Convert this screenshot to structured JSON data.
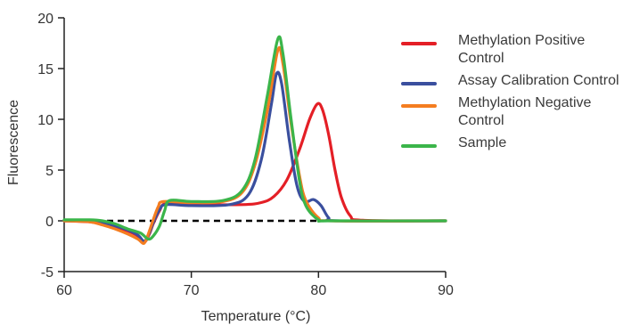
{
  "title": "...",
  "chart_data": {
    "type": "line",
    "title": "",
    "xlabel": "Temperature (°C)",
    "ylabel": "Fluorescence",
    "xlim": [
      60,
      90
    ],
    "ylim": [
      -5,
      20
    ],
    "x_ticks": [
      60,
      70,
      80,
      90
    ],
    "y_ticks": [
      -5,
      0,
      5,
      10,
      15,
      20
    ],
    "grid": false,
    "legend_position": "right",
    "baseline": {
      "y": 0,
      "style": "dashed",
      "color": "#000000"
    },
    "series": [
      {
        "name": "Methylation Positive Control",
        "color": "#e41f26",
        "points": [
          [
            60,
            0
          ],
          [
            62,
            -0.1
          ],
          [
            63,
            -0.3
          ],
          [
            64,
            -0.6
          ],
          [
            65,
            -1.0
          ],
          [
            65.8,
            -1.5
          ],
          [
            66.3,
            -2.1
          ],
          [
            66.7,
            -1.3
          ],
          [
            67,
            -0.3
          ],
          [
            67.5,
            1.0
          ],
          [
            68,
            1.7
          ],
          [
            70,
            1.6
          ],
          [
            74,
            1.6
          ],
          [
            75.5,
            1.8
          ],
          [
            76.5,
            2.4
          ],
          [
            77.5,
            4.0
          ],
          [
            78.5,
            7.0
          ],
          [
            79.3,
            10.0
          ],
          [
            79.9,
            11.5
          ],
          [
            80.3,
            11.0
          ],
          [
            80.8,
            8.5
          ],
          [
            81.3,
            5.0
          ],
          [
            81.8,
            2.3
          ],
          [
            82.5,
            0.5
          ],
          [
            83.5,
            0.05
          ],
          [
            90,
            0
          ]
        ]
      },
      {
        "name": "Assay Calibration Control",
        "color": "#3a4f9e",
        "points": [
          [
            60,
            0
          ],
          [
            62,
            0
          ],
          [
            63,
            -0.2
          ],
          [
            64,
            -0.5
          ],
          [
            65,
            -0.9
          ],
          [
            65.8,
            -1.4
          ],
          [
            66.3,
            -2.0
          ],
          [
            66.7,
            -1.2
          ],
          [
            67,
            -0.2
          ],
          [
            67.5,
            1.1
          ],
          [
            68,
            1.6
          ],
          [
            70,
            1.5
          ],
          [
            73,
            1.6
          ],
          [
            74.5,
            2.6
          ],
          [
            75.5,
            6.0
          ],
          [
            76.3,
            11.5
          ],
          [
            76.7,
            14.5
          ],
          [
            77.1,
            13.5
          ],
          [
            77.7,
            8.0
          ],
          [
            78.3,
            3.5
          ],
          [
            78.9,
            1.9
          ],
          [
            79.6,
            2.1
          ],
          [
            80.2,
            1.5
          ],
          [
            80.8,
            0.3
          ],
          [
            81.5,
            0
          ],
          [
            90,
            0
          ]
        ]
      },
      {
        "name": "Methylation Negative Control",
        "color": "#f47d20",
        "points": [
          [
            60,
            0
          ],
          [
            62,
            -0.1
          ],
          [
            63,
            -0.4
          ],
          [
            64,
            -0.8
          ],
          [
            65,
            -1.3
          ],
          [
            65.8,
            -1.8
          ],
          [
            66.3,
            -2.2
          ],
          [
            66.7,
            -1.0
          ],
          [
            67,
            0.1
          ],
          [
            67.4,
            1.4
          ],
          [
            67.8,
            1.9
          ],
          [
            70,
            1.8
          ],
          [
            72.5,
            1.9
          ],
          [
            74,
            2.8
          ],
          [
            75,
            5.5
          ],
          [
            76,
            11.0
          ],
          [
            76.8,
            16.8
          ],
          [
            77.2,
            15.5
          ],
          [
            77.8,
            10.0
          ],
          [
            78.5,
            4.5
          ],
          [
            79,
            2.0
          ],
          [
            80,
            0.3
          ],
          [
            81,
            0
          ],
          [
            90,
            0
          ]
        ]
      },
      {
        "name": "Sample",
        "color": "#3bb54a",
        "points": [
          [
            60,
            0.1
          ],
          [
            62,
            0.1
          ],
          [
            63,
            0
          ],
          [
            64,
            -0.3
          ],
          [
            65,
            -0.8
          ],
          [
            66,
            -1.2
          ],
          [
            66.6,
            -1.8
          ],
          [
            67,
            -1.5
          ],
          [
            67.5,
            -0.5
          ],
          [
            67.9,
            1.0
          ],
          [
            68.3,
            2.0
          ],
          [
            70,
            1.9
          ],
          [
            72.5,
            2.0
          ],
          [
            74,
            3.0
          ],
          [
            75,
            6.0
          ],
          [
            76,
            12.5
          ],
          [
            76.8,
            17.9
          ],
          [
            77.2,
            16.5
          ],
          [
            77.8,
            10.5
          ],
          [
            78.5,
            4.0
          ],
          [
            79,
            1.5
          ],
          [
            80,
            0.1
          ],
          [
            81,
            0
          ],
          [
            90,
            0
          ]
        ]
      }
    ]
  }
}
